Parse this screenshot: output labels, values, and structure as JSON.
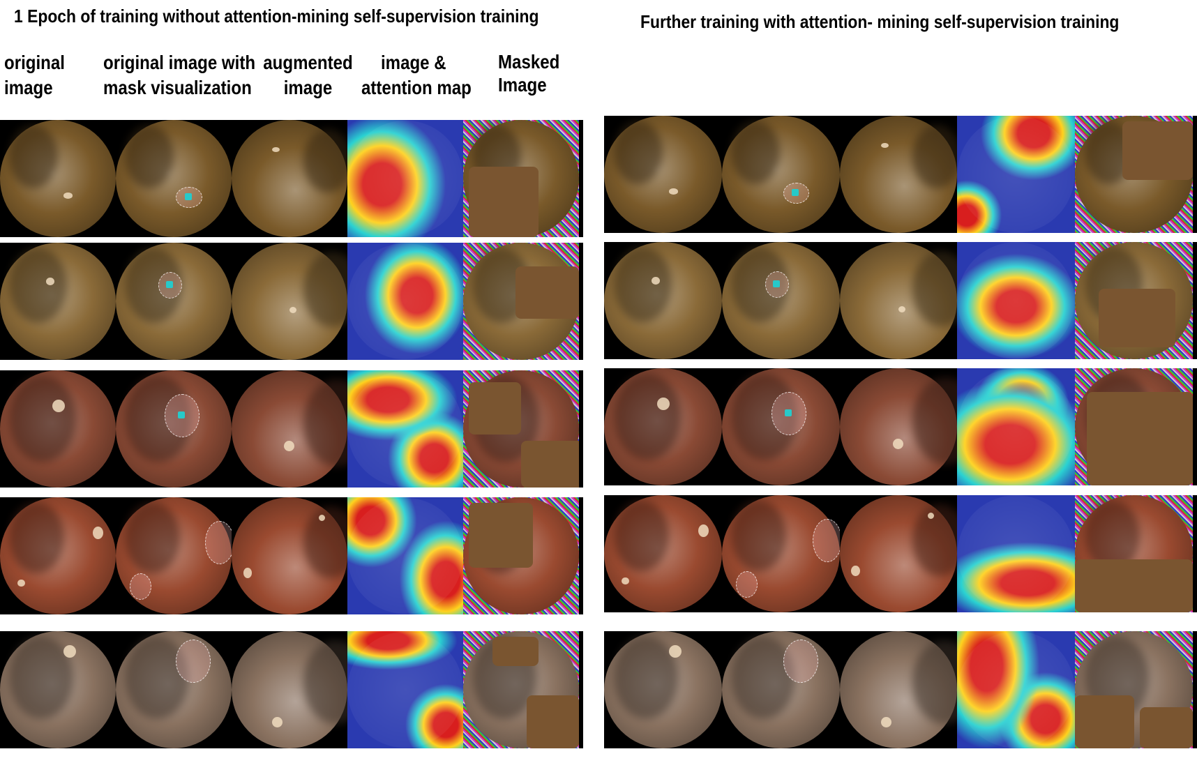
{
  "figure": {
    "left_title": "1 Epoch of training without attention-mining self-supervision training",
    "right_title": "Further training with  attention- mining self-supervision training",
    "columns": [
      {
        "line1": "original",
        "line2": "image"
      },
      {
        "line1": "original image with",
        "line2": "mask visualization"
      },
      {
        "line1": "augmented",
        "line2": "image"
      },
      {
        "line1": "image &",
        "line2": "attention map"
      },
      {
        "line1": "Masked",
        "line2": "Image"
      }
    ]
  },
  "tissue_colors": [
    "#7a5a2a",
    "#8a6a38",
    "#8a4a35",
    "#9a4a30",
    "#8a7260"
  ],
  "attention_colors": [
    "#d81e1e",
    "#ffd21e",
    "#2ad2d2",
    "#2a3ab0"
  ],
  "mask_color": "#7a5530"
}
